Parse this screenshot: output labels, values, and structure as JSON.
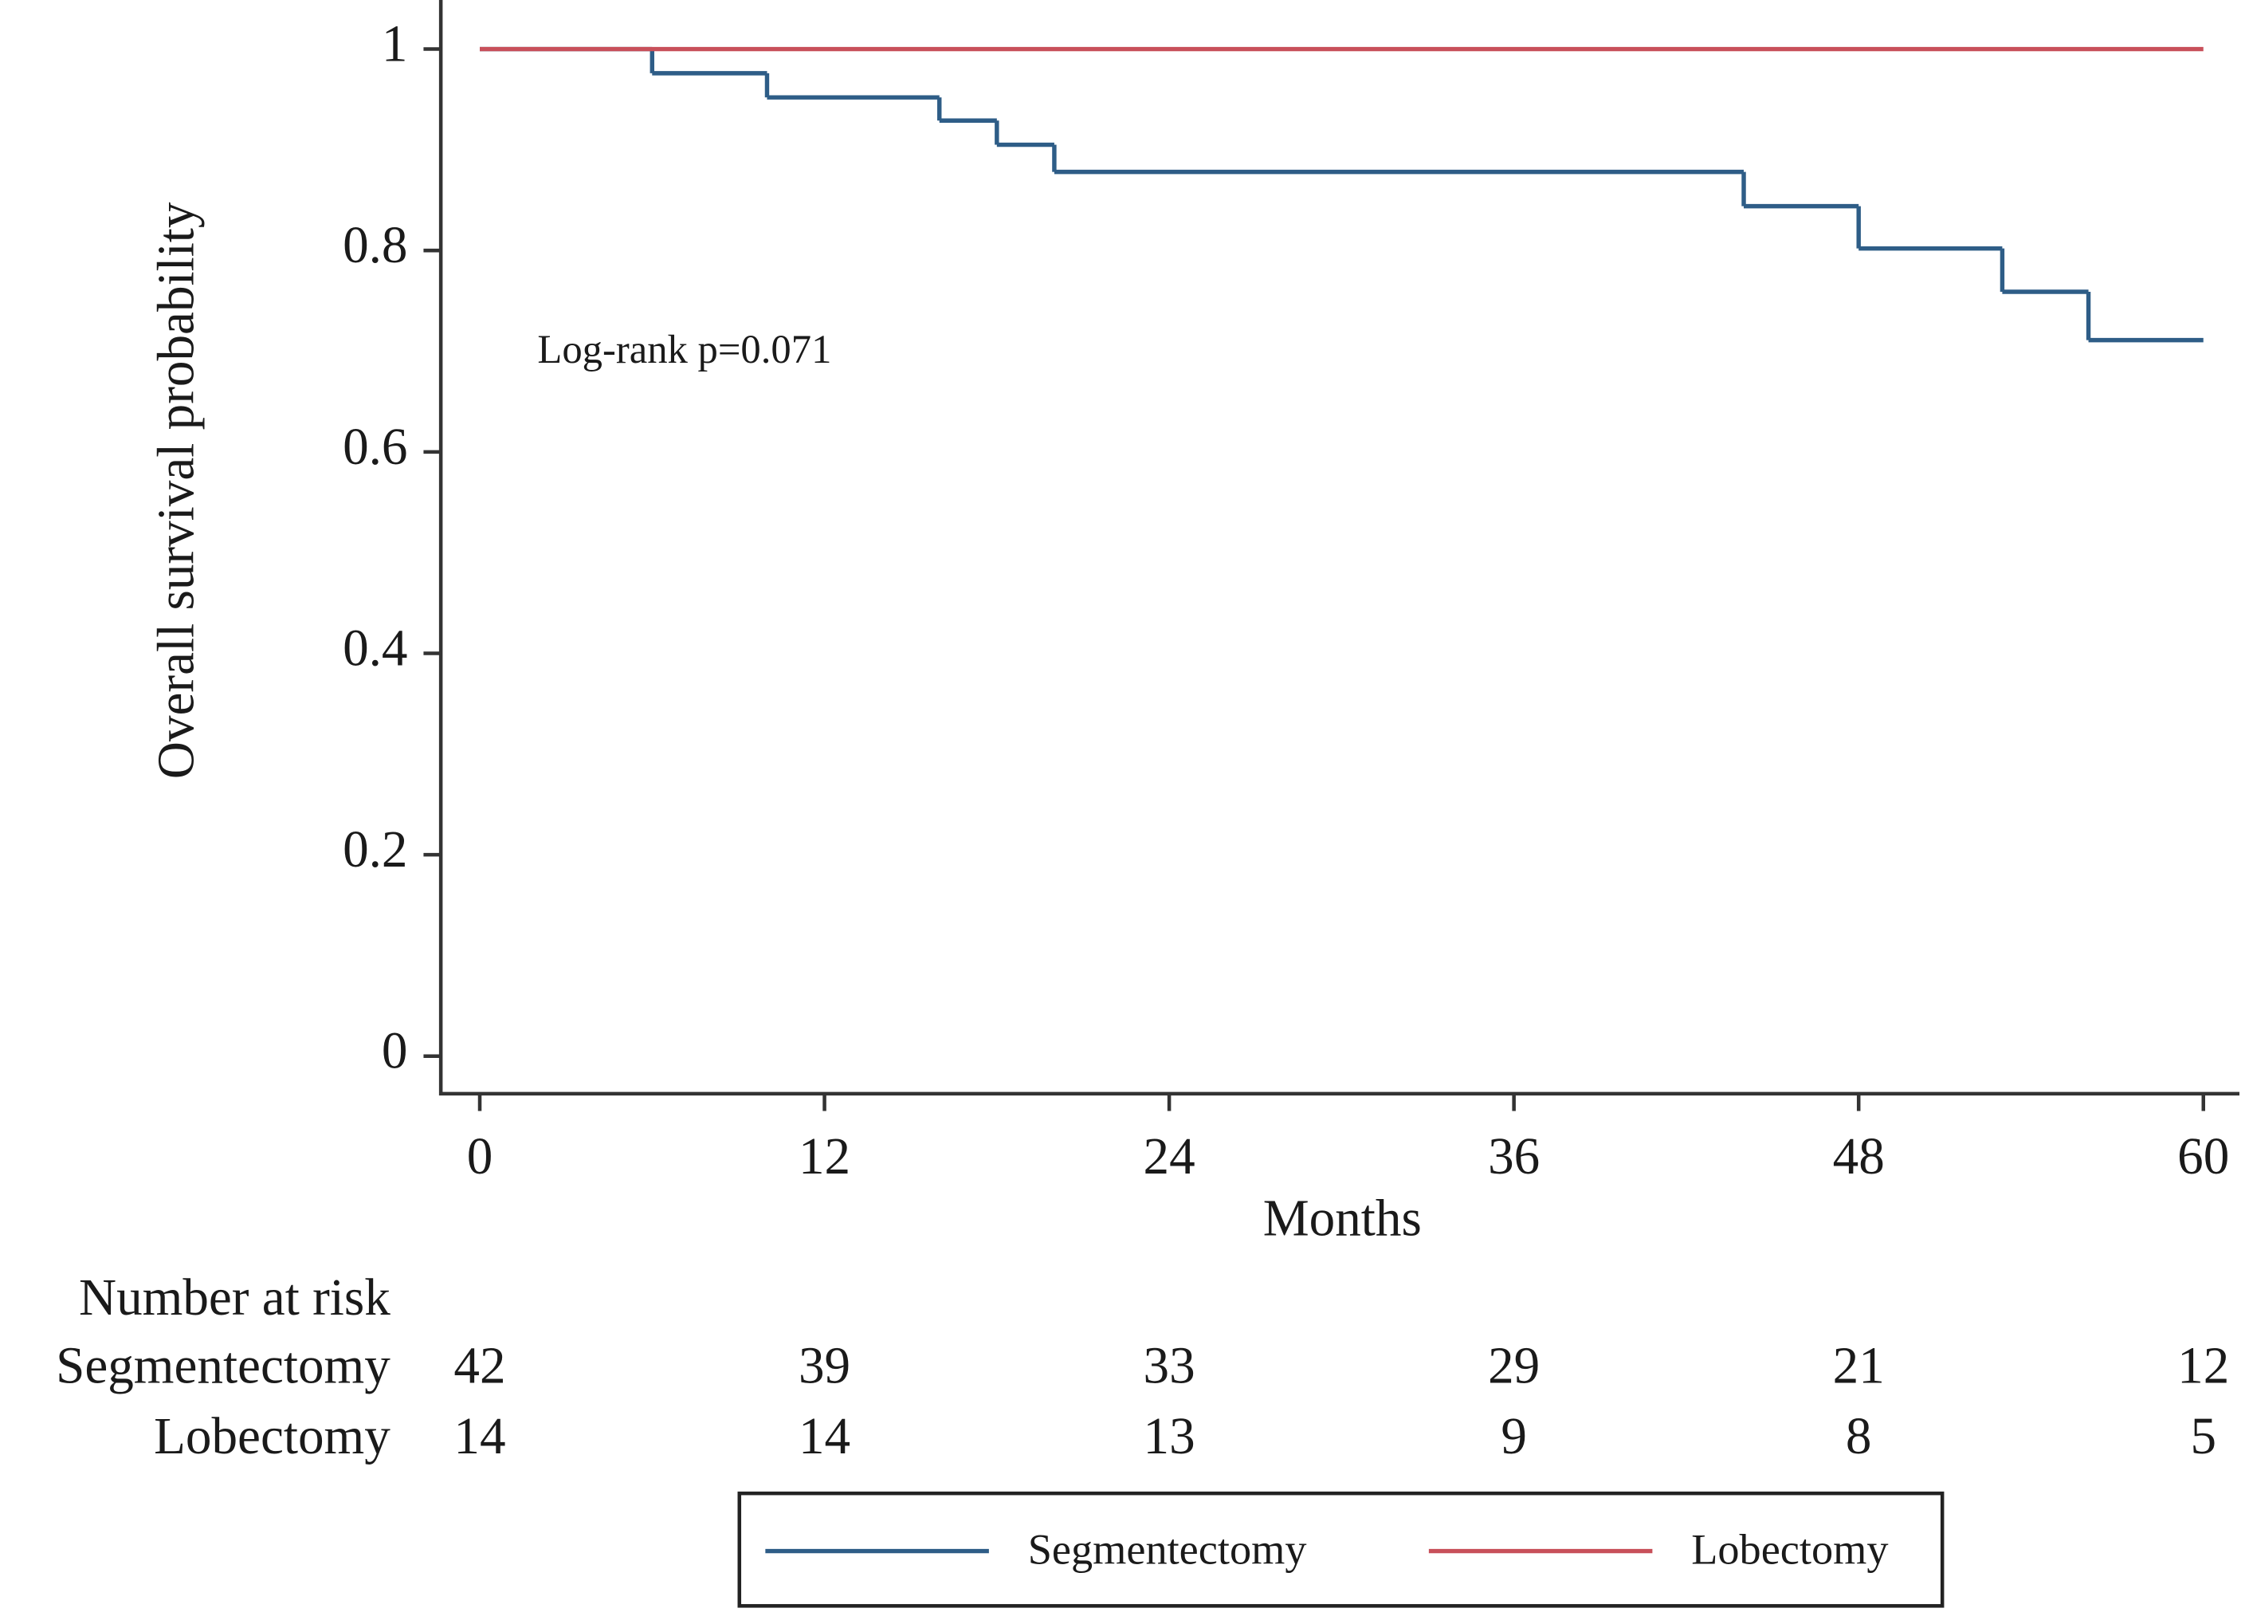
{
  "chart_data": {
    "type": "step",
    "y_label": "Overall survival probability",
    "x_label": "Months",
    "annotation": "Log-rank p=0.071",
    "xlim": [
      0,
      60
    ],
    "xticks": [
      0,
      12,
      24,
      36,
      48,
      60
    ],
    "ylim": [
      0,
      1
    ],
    "yticks": [
      0,
      0.2,
      0.4,
      0.6,
      0.8,
      1
    ],
    "series": [
      {
        "name": "Segmentectomy",
        "color": "#2e5d87",
        "x": [
          0,
          6,
          10,
          16,
          18,
          20,
          44,
          48,
          53,
          56,
          60
        ],
        "values": [
          1,
          0.976,
          0.952,
          0.929,
          0.905,
          0.878,
          0.844,
          0.802,
          0.759,
          0.711,
          0.711
        ]
      },
      {
        "name": "Lobectomy",
        "color": "#c8505a",
        "x": [
          0,
          60
        ],
        "values": [
          1,
          1
        ]
      }
    ],
    "risk_table": {
      "title": "Number at risk",
      "rows": [
        {
          "name": "Segmentectomy",
          "values": [
            42,
            39,
            33,
            29,
            21,
            12
          ]
        },
        {
          "name": "Lobectomy",
          "values": [
            14,
            14,
            13,
            9,
            8,
            5
          ]
        }
      ]
    }
  }
}
